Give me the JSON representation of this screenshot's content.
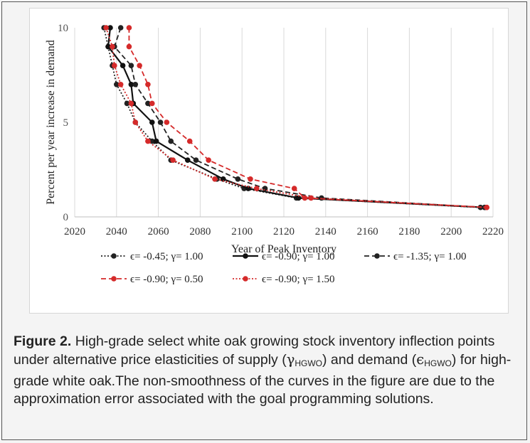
{
  "chart_data": {
    "type": "line",
    "xlabel": "Year of Peak Inventory",
    "ylabel": "Percent per year increase in demand",
    "xlim": [
      2020,
      2220
    ],
    "ylim": [
      0,
      10
    ],
    "x_ticks": [
      2020,
      2040,
      2060,
      2080,
      2100,
      2120,
      2140,
      2160,
      2180,
      2200,
      2220
    ],
    "y_ticks": [
      0,
      5,
      10
    ],
    "grid": "vertical",
    "legend_position": "bottom",
    "series": [
      {
        "name": "ϵ= -0.45; γ= 1.00",
        "color": "#222222",
        "style": "dotted",
        "points": [
          [
            2034,
            10
          ],
          [
            2036,
            9
          ],
          [
            2038,
            8
          ],
          [
            2040,
            7
          ],
          [
            2045,
            6
          ],
          [
            2049,
            5
          ],
          [
            2057,
            4
          ],
          [
            2066,
            3
          ],
          [
            2088,
            2
          ],
          [
            2101,
            1.5
          ],
          [
            2126,
            1
          ],
          [
            2214,
            0.5
          ]
        ]
      },
      {
        "name": "ϵ= -0.90; γ= 1.00",
        "color": "#111111",
        "style": "solid",
        "points": [
          [
            2037,
            10
          ],
          [
            2036,
            9
          ],
          [
            2043,
            8
          ],
          [
            2047,
            7
          ],
          [
            2048,
            6
          ],
          [
            2057,
            5
          ],
          [
            2059,
            4
          ],
          [
            2074,
            3
          ],
          [
            2091,
            2
          ],
          [
            2103,
            1.5
          ],
          [
            2127,
            1
          ],
          [
            2216,
            0.5
          ]
        ]
      },
      {
        "name": "ϵ= -1.35; γ= 1.00",
        "color": "#222222",
        "style": "dashed",
        "points": [
          [
            2042,
            10
          ],
          [
            2039,
            9
          ],
          [
            2047,
            8
          ],
          [
            2049,
            7
          ],
          [
            2055,
            6
          ],
          [
            2061,
            5
          ],
          [
            2066,
            4
          ],
          [
            2078,
            3
          ],
          [
            2098,
            2
          ],
          [
            2111,
            1.5
          ],
          [
            2138,
            1
          ],
          [
            2216,
            0.5
          ]
        ]
      },
      {
        "name": "ϵ= -0.90; γ= 0.50",
        "color": "#d52a2a",
        "style": "dashed",
        "points": [
          [
            2046,
            10
          ],
          [
            2046,
            9
          ],
          [
            2051,
            8
          ],
          [
            2055,
            7
          ],
          [
            2057,
            6
          ],
          [
            2064,
            5
          ],
          [
            2075,
            4
          ],
          [
            2084,
            3
          ],
          [
            2104,
            2
          ],
          [
            2125,
            1.5
          ],
          [
            2130,
            1
          ],
          [
            2217,
            0.5
          ]
        ]
      },
      {
        "name": "ϵ= -0.90; γ= 1.50",
        "color": "#d52a2a",
        "style": "dotted",
        "points": [
          [
            2035,
            10
          ],
          [
            2038,
            9
          ],
          [
            2039,
            8
          ],
          [
            2042,
            7
          ],
          [
            2047,
            6
          ],
          [
            2049,
            5
          ],
          [
            2055,
            4
          ],
          [
            2067,
            3
          ],
          [
            2087,
            2
          ],
          [
            2107,
            1.5
          ],
          [
            2133,
            1
          ],
          [
            2217,
            0.5
          ]
        ]
      }
    ]
  },
  "caption": {
    "label": "Figure 2.",
    "text_1": " High-grade select white oak growing stock inventory inflection points under alternative price elasticities of supply (",
    "gamma": "γ",
    "sub_1": "HGWO",
    "text_2": ") and demand (",
    "epsilon": "ϵ",
    "sub_2": "HGWO",
    "text_3": ") for high-grade white oak.The non-smoothness of the curves in the figure are due to the approximation error associated with the goal programming solutions."
  }
}
